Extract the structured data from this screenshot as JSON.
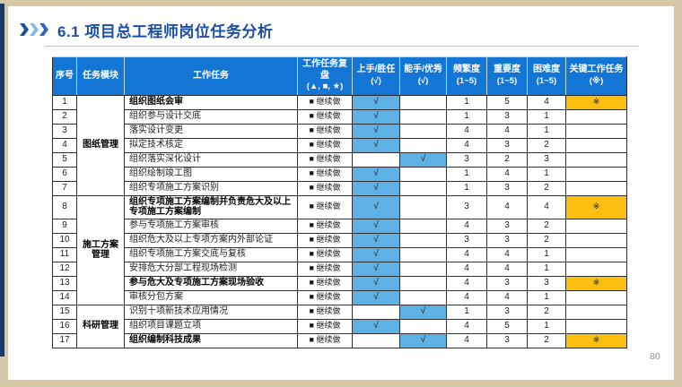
{
  "slide": {
    "title": "6.1 项目总工程师岗位任务分析",
    "page_number": "80"
  },
  "colors": {
    "header_blue": "#1476d4",
    "check_cell_blue": "#5fb0e4",
    "key_cell_orange": "#fcbf10",
    "title_blue": "#1b4fa5",
    "accent_navy": "#1c3a66",
    "frame_tan": "#d5c8a8"
  },
  "table": {
    "check_mark": "√",
    "key_mark": "※",
    "headers": [
      {
        "key": "index",
        "label": "序号",
        "sub": ""
      },
      {
        "key": "module",
        "label": "任务模块",
        "sub": ""
      },
      {
        "key": "task",
        "label": "工作任务",
        "sub": ""
      },
      {
        "key": "review",
        "label": "工作任务复盘",
        "sub": "(▲, ■, ★)"
      },
      {
        "key": "beginner",
        "label": "上手/胜任",
        "sub": "(√)"
      },
      {
        "key": "expert",
        "label": "能手/优秀",
        "sub": "(√)"
      },
      {
        "key": "frequency",
        "label": "频繁度",
        "sub": "(1~5)"
      },
      {
        "key": "importance",
        "label": "重要度",
        "sub": "(1~5)"
      },
      {
        "key": "difficulty",
        "label": "困难度",
        "sub": "(1~5)"
      },
      {
        "key": "keytask",
        "label": "关键工作任务",
        "sub": "(※)"
      }
    ],
    "modules": [
      {
        "name": "图纸管理",
        "start": 1,
        "end": 7
      },
      {
        "name": "施工方案管理",
        "start": 8,
        "end": 14
      },
      {
        "name": "科研管理",
        "start": 15,
        "end": 17
      }
    ],
    "rows": [
      {
        "no": "1",
        "task": "组织图纸会审",
        "bold": true,
        "review": "■ 继续做",
        "beginner": true,
        "expert": false,
        "frequency": "1",
        "importance": "5",
        "difficulty": "4",
        "key": true
      },
      {
        "no": "2",
        "task": "组织参与设计交底",
        "bold": false,
        "review": "■ 继续做",
        "beginner": true,
        "expert": false,
        "frequency": "1",
        "importance": "3",
        "difficulty": "1",
        "key": false
      },
      {
        "no": "3",
        "task": "落实设计变更",
        "bold": false,
        "review": "■ 继续做",
        "beginner": true,
        "expert": false,
        "frequency": "4",
        "importance": "4",
        "difficulty": "1",
        "key": false
      },
      {
        "no": "4",
        "task": "拟定技术核定",
        "bold": false,
        "review": "■ 继续做",
        "beginner": true,
        "expert": false,
        "frequency": "4",
        "importance": "3",
        "difficulty": "2",
        "key": false
      },
      {
        "no": "5",
        "task": "组织落实深化设计",
        "bold": false,
        "review": "■ 继续做",
        "beginner": false,
        "expert": true,
        "frequency": "3",
        "importance": "2",
        "difficulty": "3",
        "key": false
      },
      {
        "no": "6",
        "task": "组织绘制竣工图",
        "bold": false,
        "review": "■ 继续做",
        "beginner": true,
        "expert": false,
        "frequency": "1",
        "importance": "4",
        "difficulty": "1",
        "key": false
      },
      {
        "no": "7",
        "task": "组织专项施工方案识别",
        "bold": false,
        "review": "■ 继续做",
        "beginner": true,
        "expert": false,
        "frequency": "1",
        "importance": "3",
        "difficulty": "2",
        "key": false
      },
      {
        "no": "8",
        "task": "组织专项施工方案编制并负责危大及以上专项施工方案编制",
        "bold": true,
        "review": "■ 继续做",
        "beginner": true,
        "expert": false,
        "frequency": "3",
        "importance": "4",
        "difficulty": "4",
        "key": true
      },
      {
        "no": "9",
        "task": "参与专项施工方案审核",
        "bold": false,
        "review": "■ 继续做",
        "beginner": true,
        "expert": false,
        "frequency": "4",
        "importance": "3",
        "difficulty": "2",
        "key": false
      },
      {
        "no": "10",
        "task": "组织危大及以上专项方案内外部论证",
        "bold": false,
        "review": "■ 继续做",
        "beginner": true,
        "expert": false,
        "frequency": "3",
        "importance": "3",
        "difficulty": "2",
        "key": false
      },
      {
        "no": "11",
        "task": "组织专项施工方案交底与复核",
        "bold": false,
        "review": "■ 继续做",
        "beginner": true,
        "expert": false,
        "frequency": "4",
        "importance": "4",
        "difficulty": "1",
        "key": false
      },
      {
        "no": "12",
        "task": "安排危大分部工程现场检测",
        "bold": false,
        "review": "■ 继续做",
        "beginner": true,
        "expert": false,
        "frequency": "4",
        "importance": "4",
        "difficulty": "1",
        "key": false
      },
      {
        "no": "13",
        "task": "参与危大及专项施工方案现场验收",
        "bold": true,
        "review": "■ 继续做",
        "beginner": true,
        "expert": false,
        "frequency": "4",
        "importance": "3",
        "difficulty": "3",
        "key": true
      },
      {
        "no": "14",
        "task": "审核分包方案",
        "bold": false,
        "review": "■ 继续做",
        "beginner": true,
        "expert": false,
        "frequency": "4",
        "importance": "4",
        "difficulty": "1",
        "key": false
      },
      {
        "no": "15",
        "task": "识别十项新技术应用情况",
        "bold": false,
        "review": "■ 继续做",
        "beginner": false,
        "expert": true,
        "frequency": "1",
        "importance": "3",
        "difficulty": "2",
        "key": false
      },
      {
        "no": "16",
        "task": "组织项目课题立项",
        "bold": false,
        "review": "■ 继续做",
        "beginner": true,
        "expert": false,
        "frequency": "4",
        "importance": "5",
        "difficulty": "1",
        "key": false
      },
      {
        "no": "17",
        "task": "组织编制科技成果",
        "bold": true,
        "review": "■ 继续做",
        "beginner": false,
        "expert": true,
        "frequency": "4",
        "importance": "3",
        "difficulty": "2",
        "key": true
      }
    ]
  }
}
